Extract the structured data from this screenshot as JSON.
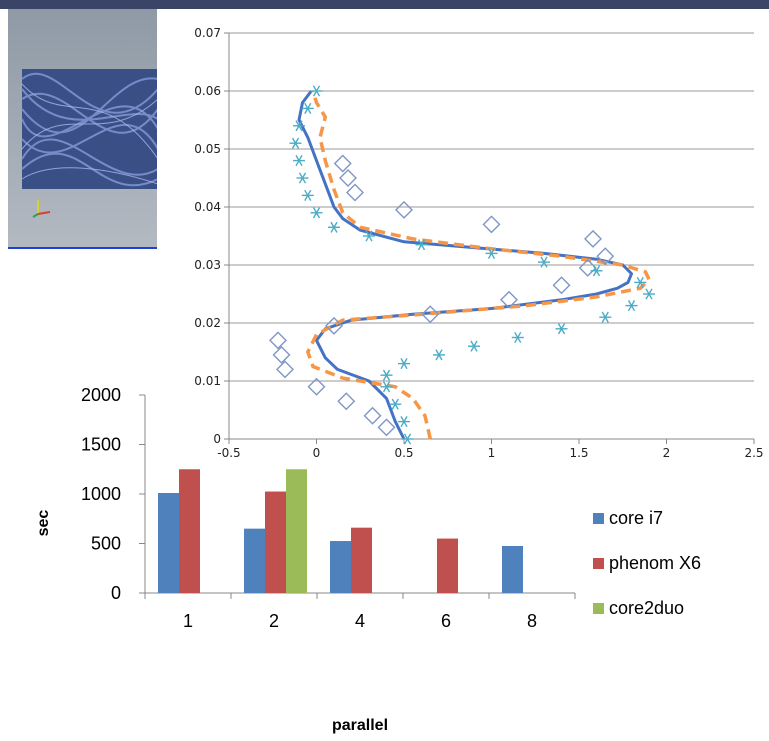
{
  "colors": {
    "core_i7": "#4f81bd",
    "phenom_x6": "#c0504d",
    "core2duo": "#9bbb59",
    "sim_line": "#4472c4",
    "dash_line": "#f79646",
    "diamond": "#7f96c8",
    "star": "#4bacc6"
  },
  "chart_data": [
    {
      "type": "line",
      "x_ticks": [
        "-0.5",
        "0",
        "0.5",
        "1",
        "1.5",
        "2",
        "2.5"
      ],
      "y_ticks": [
        "0",
        "0.01",
        "0.02",
        "0.03",
        "0.04",
        "0.05",
        "0.06",
        "0.07"
      ],
      "xlim": [
        -0.5,
        2.5
      ],
      "ylim": [
        0,
        0.07
      ],
      "grid": "horizontal",
      "series": [
        {
          "style": "solid",
          "points": [
            [
              0.5,
              0
            ],
            [
              0.45,
              0.003
            ],
            [
              0.4,
              0.007
            ],
            [
              0.3,
              0.01
            ],
            [
              0.12,
              0.012
            ],
            [
              0.05,
              0.014
            ],
            [
              0.0,
              0.017
            ],
            [
              0.05,
              0.019
            ],
            [
              0.2,
              0.0205
            ],
            [
              0.55,
              0.0215
            ],
            [
              1.0,
              0.0225
            ],
            [
              1.4,
              0.024
            ],
            [
              1.6,
              0.025
            ],
            [
              1.72,
              0.026
            ],
            [
              1.78,
              0.027
            ],
            [
              1.8,
              0.0285
            ],
            [
              1.75,
              0.03
            ],
            [
              1.6,
              0.031
            ],
            [
              1.3,
              0.032
            ],
            [
              0.9,
              0.033
            ],
            [
              0.5,
              0.034
            ],
            [
              0.25,
              0.036
            ],
            [
              0.15,
              0.038
            ],
            [
              0.1,
              0.04
            ],
            [
              0.05,
              0.044
            ],
            [
              0.0,
              0.048
            ],
            [
              -0.05,
              0.052
            ],
            [
              -0.1,
              0.055
            ],
            [
              -0.08,
              0.058
            ],
            [
              -0.03,
              0.06
            ]
          ]
        },
        {
          "style": "dashed",
          "points": [
            [
              0.65,
              0
            ],
            [
              0.62,
              0.004
            ],
            [
              0.55,
              0.007
            ],
            [
              0.45,
              0.009
            ],
            [
              0.15,
              0.0105
            ],
            [
              -0.02,
              0.0125
            ],
            [
              -0.05,
              0.015
            ],
            [
              0.0,
              0.018
            ],
            [
              0.15,
              0.0205
            ],
            [
              0.6,
              0.0215
            ],
            [
              1.2,
              0.023
            ],
            [
              1.6,
              0.0245
            ],
            [
              1.85,
              0.026
            ],
            [
              1.9,
              0.0275
            ],
            [
              1.88,
              0.0288
            ],
            [
              1.75,
              0.03
            ],
            [
              1.4,
              0.0315
            ],
            [
              1.0,
              0.0328
            ],
            [
              0.55,
              0.0345
            ],
            [
              0.25,
              0.0365
            ],
            [
              0.15,
              0.039
            ],
            [
              0.1,
              0.043
            ],
            [
              0.05,
              0.048
            ],
            [
              0.02,
              0.052
            ],
            [
              0.05,
              0.0555
            ],
            [
              0.0,
              0.058
            ],
            [
              -0.02,
              0.06
            ]
          ]
        },
        {
          "style": "diamond",
          "points": [
            [
              0.4,
              0.002
            ],
            [
              0.32,
              0.004
            ],
            [
              0.17,
              0.0065
            ],
            [
              0.0,
              0.009
            ],
            [
              -0.18,
              0.012
            ],
            [
              -0.2,
              0.0145
            ],
            [
              -0.22,
              0.017
            ],
            [
              0.1,
              0.0195
            ],
            [
              0.65,
              0.0215
            ],
            [
              1.1,
              0.024
            ],
            [
              1.4,
              0.0265
            ],
            [
              1.55,
              0.0295
            ],
            [
              1.65,
              0.0315
            ],
            [
              1.58,
              0.0345
            ],
            [
              1.0,
              0.037
            ],
            [
              0.5,
              0.0395
            ],
            [
              0.22,
              0.0425
            ],
            [
              0.18,
              0.045
            ],
            [
              0.15,
              0.0475
            ]
          ]
        },
        {
          "style": "star",
          "points": [
            [
              0.52,
              0.0
            ],
            [
              0.5,
              0.003
            ],
            [
              0.45,
              0.006
            ],
            [
              0.4,
              0.009
            ],
            [
              0.4,
              0.011
            ],
            [
              0.5,
              0.013
            ],
            [
              0.7,
              0.0145
            ],
            [
              0.9,
              0.016
            ],
            [
              1.15,
              0.0175
            ],
            [
              1.4,
              0.019
            ],
            [
              1.65,
              0.021
            ],
            [
              1.8,
              0.023
            ],
            [
              1.9,
              0.025
            ],
            [
              1.85,
              0.027
            ],
            [
              1.6,
              0.029
            ],
            [
              1.3,
              0.0305
            ],
            [
              1.0,
              0.032
            ],
            [
              0.6,
              0.0335
            ],
            [
              0.3,
              0.035
            ],
            [
              0.1,
              0.0365
            ],
            [
              0.0,
              0.039
            ],
            [
              -0.05,
              0.042
            ],
            [
              -0.08,
              0.045
            ],
            [
              -0.1,
              0.048
            ],
            [
              -0.12,
              0.051
            ],
            [
              -0.1,
              0.054
            ],
            [
              -0.05,
              0.057
            ],
            [
              0.0,
              0.06
            ]
          ]
        }
      ]
    },
    {
      "type": "bar",
      "categories": [
        "1",
        "2",
        "4",
        "6",
        "8"
      ],
      "xlabel": "parallel",
      "ylabel": "sec",
      "y_ticks": [
        "0",
        "500",
        "1000",
        "1500",
        "2000"
      ],
      "ylim": [
        0,
        2000
      ],
      "legend_position": "right",
      "series": [
        {
          "name": "core i7",
          "values": [
            1010,
            650,
            525,
            null,
            475
          ]
        },
        {
          "name": "phenom X6",
          "values": [
            1250,
            1025,
            660,
            550,
            null
          ]
        },
        {
          "name": "core2duo",
          "values": [
            null,
            1250,
            null,
            null,
            null
          ]
        }
      ]
    }
  ]
}
